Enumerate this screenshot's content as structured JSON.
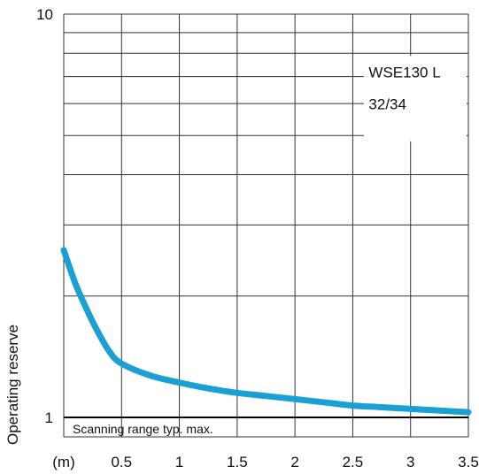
{
  "chart_data": {
    "type": "line",
    "ylabel": "Operating reserve",
    "x_unit_label": "(m)",
    "y_scale": "log",
    "ylim": [
      1,
      10
    ],
    "xlim": [
      0,
      3.5
    ],
    "x_ticks": [
      "0.5",
      "1",
      "1.5",
      "2",
      "2.5",
      "3",
      "3.5"
    ],
    "y_ticks": [
      "1",
      "10"
    ],
    "annotation": "Scanning range typ. max.",
    "legend": {
      "line1": "WSE130 L",
      "line2": "32/34",
      "placement": "top-right"
    },
    "grid": true,
    "series": [
      {
        "color": "#1ba0d4",
        "x": [
          0,
          0.1,
          0.2,
          0.3,
          0.4,
          0.5,
          0.75,
          1.0,
          1.25,
          1.5,
          1.75,
          2.0,
          2.25,
          2.5,
          2.75,
          3.0,
          3.25,
          3.5
        ],
        "y": [
          2.6,
          2.15,
          1.85,
          1.62,
          1.45,
          1.36,
          1.27,
          1.22,
          1.18,
          1.15,
          1.13,
          1.11,
          1.09,
          1.07,
          1.06,
          1.05,
          1.04,
          1.03
        ]
      }
    ]
  }
}
